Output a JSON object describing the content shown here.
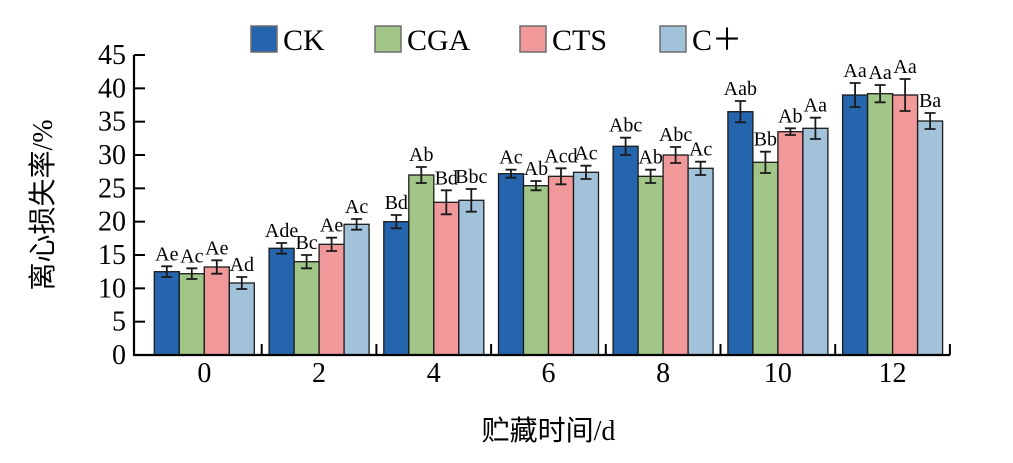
{
  "figure": {
    "background": "#ffffff",
    "axis_color": "#000000",
    "bar_border_color": "#1a1a1a",
    "error_bar_color": "#1a1a1a",
    "legend_swatch_border": "#6e6e6e"
  },
  "chart_data": {
    "type": "bar",
    "title": "",
    "xlabel": "贮藏时间/d",
    "ylabel": "离心损失率/%",
    "ylim": [
      0,
      45
    ],
    "ytick_step": 5,
    "grid": false,
    "legend_position": "top",
    "categories": [
      "0",
      "2",
      "4",
      "6",
      "8",
      "10",
      "12"
    ],
    "series": [
      {
        "name": "CK",
        "color": "#2565ae",
        "values": [
          12.5,
          16.0,
          20.0,
          27.2,
          31.3,
          36.5,
          39.0
        ],
        "errors": [
          0.8,
          0.8,
          1.0,
          0.6,
          1.3,
          1.6,
          1.8
        ],
        "labels": [
          "Ae",
          "Ade",
          "Bd",
          "Ac",
          "Abc",
          "Aab",
          "Aa"
        ]
      },
      {
        "name": "CGA",
        "color": "#a1c688",
        "values": [
          12.2,
          14.0,
          27.0,
          25.4,
          26.8,
          28.9,
          39.2
        ],
        "errors": [
          0.8,
          1.0,
          1.2,
          0.7,
          1.0,
          1.6,
          1.3
        ],
        "labels": [
          "Ac",
          "Bc",
          "Ab",
          "Ab",
          "Ab",
          "Bb",
          "Aa"
        ]
      },
      {
        "name": "CTS",
        "color": "#f0989a",
        "values": [
          13.2,
          16.6,
          22.9,
          26.8,
          30.0,
          33.5,
          39.0
        ],
        "errors": [
          1.0,
          1.0,
          1.8,
          1.2,
          1.2,
          0.5,
          2.4
        ],
        "labels": [
          "Ae",
          "Ae",
          "Bd",
          "Acd",
          "Abc",
          "Ab",
          "Aa"
        ]
      },
      {
        "name": "C＋",
        "color": "#a2c2da",
        "values": [
          10.8,
          19.6,
          23.2,
          27.4,
          28.0,
          34.0,
          35.1
        ],
        "errors": [
          0.9,
          0.8,
          1.7,
          1.0,
          1.0,
          1.6,
          1.2
        ],
        "labels": [
          "Ad",
          "Ac",
          "Bbc",
          "Ac",
          "Ac",
          "Aa",
          "Ba"
        ]
      }
    ]
  }
}
